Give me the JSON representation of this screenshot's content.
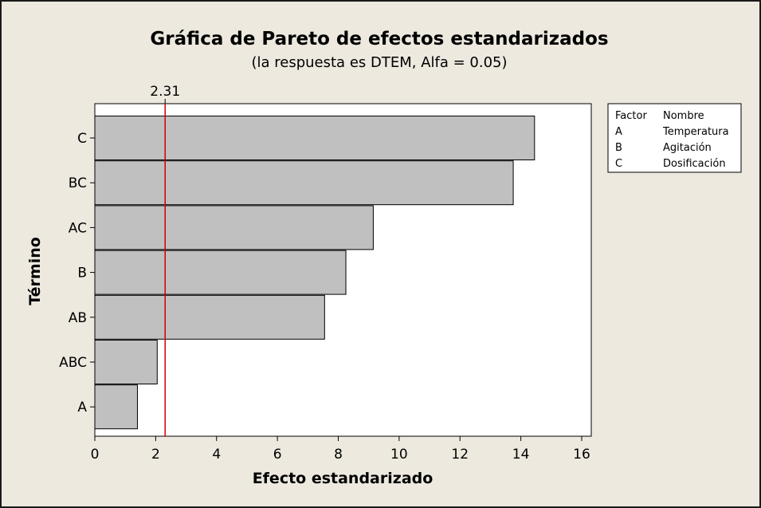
{
  "chart_data": {
    "type": "bar",
    "orientation": "horizontal",
    "title": "Gráfica de Pareto de efectos estandarizados",
    "subtitle": "(la respuesta es DTEM, Alfa =  0.05)",
    "xlabel": "Efecto estandarizado",
    "ylabel": "Término",
    "categories": [
      "C",
      "BC",
      "AC",
      "B",
      "AB",
      "ABC",
      "A"
    ],
    "values": [
      14.45,
      13.75,
      9.15,
      8.25,
      7.55,
      2.05,
      1.4
    ],
    "xlim": [
      0,
      16
    ],
    "xticks": [
      0,
      2,
      4,
      6,
      8,
      10,
      12,
      14,
      16
    ],
    "reference_line": {
      "value": 2.31,
      "label": "2.31",
      "color": "#cc0000"
    },
    "bar_color": "#c0c0c0",
    "grid": false,
    "legend_placement": "top-right",
    "legend": {
      "header": [
        "Factor",
        "Nombre"
      ],
      "rows": [
        [
          "A",
          "Temperatura"
        ],
        [
          "B",
          "Agitación"
        ],
        [
          "C",
          "Dosificación"
        ]
      ]
    }
  }
}
